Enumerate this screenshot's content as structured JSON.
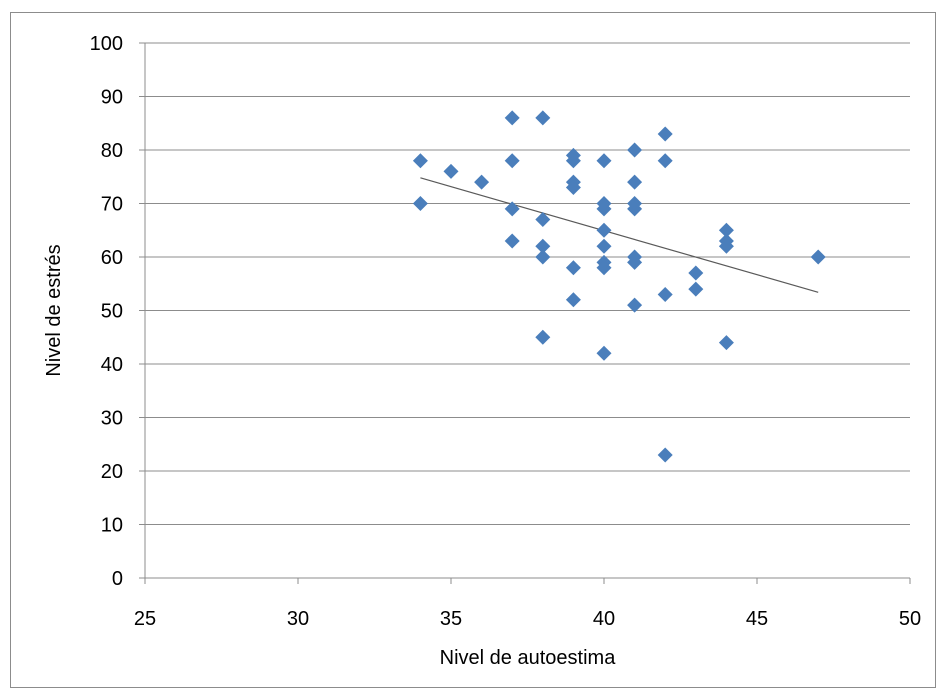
{
  "chart_data": {
    "type": "scatter",
    "xlabel": "Nivel de autoestima",
    "ylabel": "Nivel de estrés",
    "xlim": [
      25,
      50
    ],
    "ylim": [
      0,
      100
    ],
    "xticks": [
      25,
      30,
      35,
      40,
      45,
      50
    ],
    "yticks": [
      0,
      10,
      20,
      30,
      40,
      50,
      60,
      70,
      80,
      90,
      100
    ],
    "grid": "horizontal",
    "legend": "none",
    "marker": "diamond",
    "marker_color": "#4a7ebb",
    "trendline_color": "#595959",
    "series": [
      {
        "points": [
          [
            34,
            78
          ],
          [
            34,
            70
          ],
          [
            35,
            76
          ],
          [
            36,
            74
          ],
          [
            37,
            86
          ],
          [
            37,
            78
          ],
          [
            37,
            69
          ],
          [
            37,
            63
          ],
          [
            38,
            86
          ],
          [
            38,
            67
          ],
          [
            38,
            62
          ],
          [
            38,
            60
          ],
          [
            38,
            45
          ],
          [
            39,
            79
          ],
          [
            39,
            78
          ],
          [
            39,
            74
          ],
          [
            39,
            73
          ],
          [
            39,
            58
          ],
          [
            39,
            52
          ],
          [
            40,
            78
          ],
          [
            40,
            70
          ],
          [
            40,
            69
          ],
          [
            40,
            65
          ],
          [
            40,
            62
          ],
          [
            40,
            59
          ],
          [
            40,
            58
          ],
          [
            40,
            42
          ],
          [
            41,
            80
          ],
          [
            41,
            74
          ],
          [
            41,
            70
          ],
          [
            41,
            69
          ],
          [
            41,
            60
          ],
          [
            41,
            59
          ],
          [
            41,
            51
          ],
          [
            42,
            83
          ],
          [
            42,
            78
          ],
          [
            42,
            53
          ],
          [
            42,
            23
          ],
          [
            43,
            57
          ],
          [
            43,
            54
          ],
          [
            44,
            65
          ],
          [
            44,
            63
          ],
          [
            44,
            62
          ],
          [
            44,
            44
          ],
          [
            47,
            60
          ]
        ]
      }
    ],
    "trendline": {
      "x": [
        34,
        47
      ],
      "y": [
        74.8,
        53.4
      ]
    }
  }
}
